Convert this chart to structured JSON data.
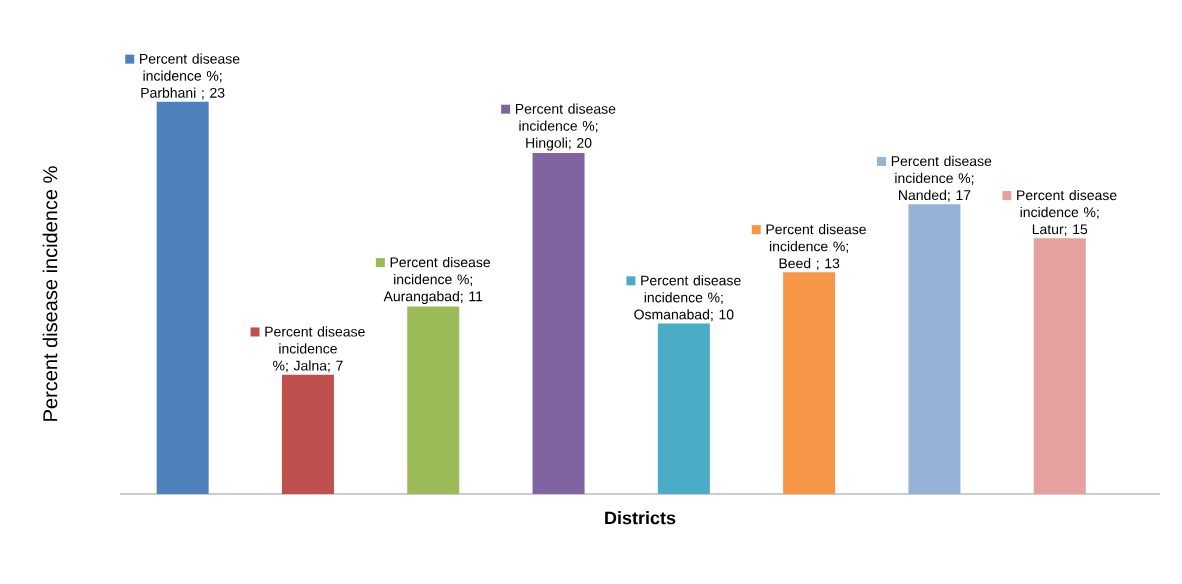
{
  "chart_data": {
    "type": "bar",
    "xlabel": "Districts",
    "ylabel": "Percent disease incidence %",
    "categories": [
      null,
      null,
      null,
      null,
      null,
      null,
      null,
      null
    ],
    "values": [
      23,
      7,
      11,
      20,
      10,
      13,
      17,
      15
    ],
    "colors": [
      "#4f81bd",
      "#c0504d",
      "#9bbb59",
      "#8064a2",
      "#4bacc6",
      "#f79646",
      "#95b3d7",
      "#e6a0a0"
    ],
    "value_labels": [
      "Percent disease incidence %; Parbhani ; 23",
      "Percent disease incidence %; Jalna; 7",
      "Percent disease incidence %; Aurangabad; 11",
      "Percent disease incidence %; Hingoli; 20",
      "Percent disease incidence %; Osmanabad; 10",
      "Percent disease incidence %; Beed ; 13",
      "Percent disease incidence %; Nanded; 17",
      "Percent disease incidence %; Latur; 15"
    ]
  }
}
